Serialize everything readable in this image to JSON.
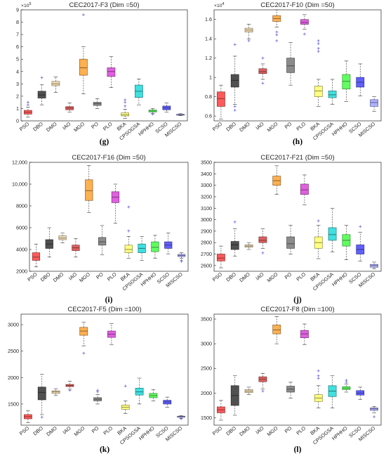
{
  "figure": {
    "labels": [
      "(g)",
      "(h)",
      "(i)",
      "(j)",
      "(k)",
      "(l)"
    ]
  },
  "chart_data": [
    {
      "type": "box",
      "title": "CEC2017-F3 (Dim =50)",
      "subplot_label": "(g)",
      "exponent": "5",
      "ylim": [
        0,
        9
      ],
      "yticks": [
        0,
        1,
        2,
        3,
        4,
        5,
        6,
        7,
        8,
        9
      ],
      "ytick_labels": [
        "0",
        "1",
        "2",
        "3",
        "4",
        "5",
        "6",
        "7",
        "8",
        "9"
      ],
      "categories": [
        "PSO",
        "DBO",
        "DMO",
        "IAO",
        "MGO",
        "PO",
        "PLO",
        "BKA",
        "CPSOGSA",
        "HPHHO",
        "SCSO",
        "MISCSO"
      ],
      "colors": [
        "#ff5a5a",
        "#505050",
        "#f3dcb4",
        "#e06060",
        "#ffb050",
        "#8c8c8c",
        "#e060e0",
        "#ffff80",
        "#40e0e0",
        "#60ff60",
        "#6060ff",
        "#b0b0ff"
      ],
      "boxes": [
        {
          "whislo": 0.3,
          "q1": 0.55,
          "med": 0.7,
          "q3": 0.85,
          "whishi": 1.1,
          "fliers": [
            1.3,
            1.5
          ]
        },
        {
          "whislo": 1.3,
          "q1": 1.85,
          "med": 2.1,
          "q3": 2.4,
          "whishi": 2.95,
          "fliers": [
            3.5
          ]
        },
        {
          "whislo": 2.3,
          "q1": 2.85,
          "med": 3.0,
          "q3": 3.2,
          "whishi": 3.55,
          "fliers": []
        },
        {
          "whislo": 0.7,
          "q1": 0.9,
          "med": 1.05,
          "q3": 1.15,
          "whishi": 1.45,
          "fliers": []
        },
        {
          "whislo": 2.2,
          "q1": 3.7,
          "med": 4.3,
          "q3": 5.0,
          "whishi": 6.0,
          "fliers": [
            8.6
          ]
        },
        {
          "whislo": 1.0,
          "q1": 1.25,
          "med": 1.4,
          "q3": 1.5,
          "whishi": 1.8,
          "fliers": []
        },
        {
          "whislo": 2.7,
          "q1": 3.6,
          "med": 4.0,
          "q3": 4.3,
          "whishi": 5.2,
          "fliers": []
        },
        {
          "whislo": 0.2,
          "q1": 0.4,
          "med": 0.5,
          "q3": 0.65,
          "whishi": 0.95,
          "fliers": [
            1.2,
            1.5,
            1.7
          ]
        },
        {
          "whislo": 1.3,
          "q1": 1.9,
          "med": 2.4,
          "q3": 2.9,
          "whishi": 3.4,
          "fliers": []
        },
        {
          "whislo": 0.6,
          "q1": 0.72,
          "med": 0.8,
          "q3": 0.88,
          "whishi": 1.0,
          "fliers": [
            0.55
          ]
        },
        {
          "whislo": 0.7,
          "q1": 0.9,
          "med": 1.05,
          "q3": 1.2,
          "whishi": 1.45,
          "fliers": []
        },
        {
          "whislo": 0.42,
          "q1": 0.46,
          "med": 0.5,
          "q3": 0.54,
          "whishi": 0.58,
          "fliers": []
        }
      ]
    },
    {
      "type": "box",
      "title": "CEC2017-F10 (Dim =50)",
      "subplot_label": "(h)",
      "exponent": "4",
      "ylim": [
        0.55,
        1.7
      ],
      "yticks": [
        0.6,
        0.8,
        1.0,
        1.2,
        1.4,
        1.6
      ],
      "ytick_labels": [
        "0.6",
        "0.8",
        "1",
        "1.2",
        "1.4",
        "1.6"
      ],
      "categories": [
        "PSO",
        "DBO",
        "DMO",
        "IAO",
        "MGO",
        "PO",
        "PLO",
        "BKA",
        "CPSOGSA",
        "HPHHO",
        "SCSO",
        "MISCSO"
      ],
      "colors": [
        "#ff5a5a",
        "#505050",
        "#f3dcb4",
        "#e06060",
        "#ffb050",
        "#8c8c8c",
        "#e060e0",
        "#ffff80",
        "#40e0e0",
        "#60ff60",
        "#6060ff",
        "#b0b0ff"
      ],
      "boxes": [
        {
          "whislo": 0.57,
          "q1": 0.7,
          "med": 0.78,
          "q3": 0.85,
          "whishi": 0.92,
          "fliers": []
        },
        {
          "whislo": 0.72,
          "q1": 0.9,
          "med": 0.97,
          "q3": 1.03,
          "whishi": 1.22,
          "fliers": [
            1.34,
            0.66,
            0.7
          ]
        },
        {
          "whislo": 1.4,
          "q1": 1.47,
          "med": 1.49,
          "q3": 1.51,
          "whishi": 1.55,
          "fliers": [
            1.38
          ]
        },
        {
          "whislo": 0.98,
          "q1": 1.04,
          "med": 1.06,
          "q3": 1.09,
          "whishi": 1.14,
          "fliers": [
            0.94,
            1.2
          ]
        },
        {
          "whislo": 1.52,
          "q1": 1.58,
          "med": 1.61,
          "q3": 1.64,
          "whishi": 1.7,
          "fliers": [
            1.38,
            1.44,
            1.47
          ]
        },
        {
          "whislo": 0.92,
          "q1": 1.05,
          "med": 1.12,
          "q3": 1.2,
          "whishi": 1.36,
          "fliers": []
        },
        {
          "whislo": 1.5,
          "q1": 1.55,
          "med": 1.57,
          "q3": 1.6,
          "whishi": 1.65,
          "fliers": [
            1.45
          ]
        },
        {
          "whislo": 0.7,
          "q1": 0.8,
          "med": 0.86,
          "q3": 0.91,
          "whishi": 0.98,
          "fliers": [
            1.27,
            1.3,
            1.35,
            1.38
          ]
        },
        {
          "whislo": 0.72,
          "q1": 0.79,
          "med": 0.82,
          "q3": 0.86,
          "whishi": 0.98,
          "fliers": []
        },
        {
          "whislo": 0.75,
          "q1": 0.88,
          "med": 0.96,
          "q3": 1.03,
          "whishi": 1.17,
          "fliers": []
        },
        {
          "whislo": 0.81,
          "q1": 0.9,
          "med": 0.95,
          "q3": 1.0,
          "whishi": 1.14,
          "fliers": []
        },
        {
          "whislo": 0.65,
          "q1": 0.7,
          "med": 0.74,
          "q3": 0.77,
          "whishi": 0.8,
          "fliers": []
        }
      ]
    },
    {
      "type": "box",
      "title": "CEC2017-F16 (Dim =50)",
      "subplot_label": "(i)",
      "exponent": "",
      "ylim": [
        2000,
        12000
      ],
      "yticks": [
        2000,
        4000,
        6000,
        8000,
        10000,
        12000
      ],
      "ytick_labels": [
        "2000",
        "4000",
        "6000",
        "8000",
        "10,000",
        "12,000"
      ],
      "categories": [
        "PSO",
        "DBO",
        "DMO",
        "IAO",
        "MGO",
        "PO",
        "PLO",
        "BKA",
        "CPSOGSA",
        "HPHHO",
        "SCSO",
        "MISCSO"
      ],
      "colors": [
        "#ff5a5a",
        "#505050",
        "#f3dcb4",
        "#e06060",
        "#ffb050",
        "#8c8c8c",
        "#e060e0",
        "#ffff80",
        "#40e0e0",
        "#60ff60",
        "#6060ff",
        "#b0b0ff"
      ],
      "boxes": [
        {
          "whislo": 2400,
          "q1": 3000,
          "med": 3300,
          "q3": 3700,
          "whishi": 4500,
          "fliers": []
        },
        {
          "whislo": 3300,
          "q1": 4100,
          "med": 4500,
          "q3": 4900,
          "whishi": 6000,
          "fliers": []
        },
        {
          "whislo": 4600,
          "q1": 4900,
          "med": 5050,
          "q3": 5250,
          "whishi": 5500,
          "fliers": []
        },
        {
          "whislo": 3300,
          "q1": 3900,
          "med": 4150,
          "q3": 4400,
          "whishi": 5000,
          "fliers": []
        },
        {
          "whislo": 7400,
          "q1": 8500,
          "med": 9400,
          "q3": 10400,
          "whishi": 11700,
          "fliers": []
        },
        {
          "whislo": 3500,
          "q1": 4400,
          "med": 4700,
          "q3": 5100,
          "whishi": 6200,
          "fliers": []
        },
        {
          "whislo": 6400,
          "q1": 8300,
          "med": 8800,
          "q3": 9300,
          "whishi": 10000,
          "fliers": []
        },
        {
          "whislo": 3200,
          "q1": 3700,
          "med": 4000,
          "q3": 4400,
          "whishi": 5200,
          "fliers": [
            5700,
            7900
          ]
        },
        {
          "whislo": 3000,
          "q1": 3700,
          "med": 4100,
          "q3": 4500,
          "whishi": 5200,
          "fliers": []
        },
        {
          "whislo": 3200,
          "q1": 3800,
          "med": 4200,
          "q3": 4700,
          "whishi": 5300,
          "fliers": []
        },
        {
          "whislo": 3600,
          "q1": 4100,
          "med": 4400,
          "q3": 4700,
          "whishi": 5500,
          "fliers": []
        },
        {
          "whislo": 3200,
          "q1": 3350,
          "med": 3450,
          "q3": 3550,
          "whishi": 3700,
          "fliers": [
            2900,
            3000
          ]
        }
      ]
    },
    {
      "type": "box",
      "title": "CEC2017-F21 (Dim =50)",
      "subplot_label": "(j)",
      "exponent": "",
      "ylim": [
        2550,
        3500
      ],
      "yticks": [
        2600,
        2700,
        2800,
        2900,
        3000,
        3100,
        3200,
        3300,
        3400,
        3500
      ],
      "ytick_labels": [
        "2600",
        "2700",
        "2800",
        "2900",
        "3000",
        "3100",
        "3200",
        "3300",
        "3400",
        "3500"
      ],
      "categories": [
        "PSO",
        "DBO",
        "DMO",
        "IAO",
        "MGO",
        "PO",
        "PLO",
        "BKA",
        "CPSOGSA",
        "HPHHO",
        "SCSO",
        "MISCSO"
      ],
      "colors": [
        "#ff5a5a",
        "#505050",
        "#f3dcb4",
        "#e06060",
        "#ffb050",
        "#8c8c8c",
        "#e060e0",
        "#ffff80",
        "#40e0e0",
        "#60ff60",
        "#6060ff",
        "#b0b0ff"
      ],
      "boxes": [
        {
          "whislo": 2580,
          "q1": 2640,
          "med": 2665,
          "q3": 2700,
          "whishi": 2770,
          "fliers": []
        },
        {
          "whislo": 2680,
          "q1": 2740,
          "med": 2780,
          "q3": 2810,
          "whishi": 2920,
          "fliers": [
            2980
          ]
        },
        {
          "whislo": 2740,
          "q1": 2760,
          "med": 2770,
          "q3": 2780,
          "whishi": 2800,
          "fliers": []
        },
        {
          "whislo": 2750,
          "q1": 2800,
          "med": 2820,
          "q3": 2850,
          "whishi": 2920,
          "fliers": [
            2710
          ]
        },
        {
          "whislo": 3220,
          "q1": 3300,
          "med": 3340,
          "q3": 3380,
          "whishi": 3470,
          "fliers": []
        },
        {
          "whislo": 2700,
          "q1": 2750,
          "med": 2790,
          "q3": 2850,
          "whishi": 2950,
          "fliers": []
        },
        {
          "whislo": 3130,
          "q1": 3220,
          "med": 3260,
          "q3": 3310,
          "whishi": 3390,
          "fliers": []
        },
        {
          "whislo": 2660,
          "q1": 2750,
          "med": 2800,
          "q3": 2850,
          "whishi": 2950,
          "fliers": [
            2990
          ]
        },
        {
          "whislo": 2720,
          "q1": 2820,
          "med": 2870,
          "q3": 2930,
          "whishi": 3100,
          "fliers": []
        },
        {
          "whislo": 2650,
          "q1": 2770,
          "med": 2820,
          "q3": 2870,
          "whishi": 2950,
          "fliers": []
        },
        {
          "whislo": 2640,
          "q1": 2700,
          "med": 2740,
          "q3": 2780,
          "whishi": 2890,
          "fliers": [
            2940
          ]
        },
        {
          "whislo": 2570,
          "q1": 2585,
          "med": 2600,
          "q3": 2610,
          "whishi": 2630,
          "fliers": []
        }
      ]
    },
    {
      "type": "box",
      "title": "CEC2017-F5 (Dim =100)",
      "subplot_label": "(k)",
      "exponent": "",
      "ylim": [
        1100,
        3200
      ],
      "yticks": [
        1500,
        2000,
        2500,
        3000
      ],
      "ytick_labels": [
        "1500",
        "2000",
        "2500",
        "3000"
      ],
      "categories": [
        "PSO",
        "DBO",
        "DMO",
        "IAO",
        "MGO",
        "PO",
        "PLO",
        "BKA",
        "CPSOGSA",
        "HPHHO",
        "SCSO",
        "MISCSO"
      ],
      "colors": [
        "#ff5a5a",
        "#505050",
        "#f3dcb4",
        "#e06060",
        "#ffb050",
        "#8c8c8c",
        "#e060e0",
        "#ffff80",
        "#40e0e0",
        "#60ff60",
        "#6060ff",
        "#b0b0ff"
      ],
      "boxes": [
        {
          "whislo": 1150,
          "q1": 1220,
          "med": 1260,
          "q3": 1300,
          "whishi": 1370,
          "fliers": []
        },
        {
          "whislo": 1300,
          "q1": 1580,
          "med": 1720,
          "q3": 1820,
          "whishi": 2060,
          "fliers": [
            1250
          ]
        },
        {
          "whislo": 1660,
          "q1": 1700,
          "med": 1730,
          "q3": 1750,
          "whishi": 1790,
          "fliers": []
        },
        {
          "whislo": 1780,
          "q1": 1830,
          "med": 1850,
          "q3": 1870,
          "whishi": 1930,
          "fliers": [
            1760
          ]
        },
        {
          "whislo": 2600,
          "q1": 2800,
          "med": 2880,
          "q3": 2950,
          "whishi": 3050,
          "fliers": [
            2460
          ]
        },
        {
          "whislo": 1500,
          "q1": 1560,
          "med": 1590,
          "q3": 1620,
          "whishi": 1680,
          "fliers": [
            1730,
            1760
          ]
        },
        {
          "whislo": 2620,
          "q1": 2760,
          "med": 2820,
          "q3": 2880,
          "whishi": 3020,
          "fliers": []
        },
        {
          "whislo": 1320,
          "q1": 1400,
          "med": 1440,
          "q3": 1480,
          "whishi": 1560,
          "fliers": [
            1840
          ]
        },
        {
          "whislo": 1500,
          "q1": 1670,
          "med": 1730,
          "q3": 1800,
          "whishi": 1990,
          "fliers": []
        },
        {
          "whislo": 1560,
          "q1": 1620,
          "med": 1660,
          "q3": 1700,
          "whishi": 1770,
          "fliers": []
        },
        {
          "whislo": 1440,
          "q1": 1500,
          "med": 1540,
          "q3": 1570,
          "whishi": 1630,
          "fliers": []
        },
        {
          "whislo": 1230,
          "q1": 1250,
          "med": 1260,
          "q3": 1270,
          "whishi": 1280,
          "fliers": [
            1220
          ]
        }
      ]
    },
    {
      "type": "box",
      "title": "CEC2017-F8 (Dim =100)",
      "subplot_label": "(l)",
      "exponent": "",
      "ylim": [
        1350,
        3600
      ],
      "yticks": [
        1500,
        2000,
        2500,
        3000,
        3500
      ],
      "ytick_labels": [
        "1500",
        "2000",
        "2500",
        "3000",
        "3500"
      ],
      "categories": [
        "PSO",
        "DBO",
        "DMO",
        "IAO",
        "MGO",
        "PO",
        "PLO",
        "BKA",
        "CPSOGSA",
        "HPHHO",
        "SCSO",
        "MISCSO"
      ],
      "colors": [
        "#ff5a5a",
        "#505050",
        "#f3dcb4",
        "#e06060",
        "#ffb050",
        "#8c8c8c",
        "#e060e0",
        "#ffff80",
        "#40e0e0",
        "#60ff60",
        "#6060ff",
        "#b0b0ff"
      ],
      "boxes": [
        {
          "whislo": 1450,
          "q1": 1600,
          "med": 1660,
          "q3": 1720,
          "whishi": 1850,
          "fliers": []
        },
        {
          "whislo": 1550,
          "q1": 1750,
          "med": 1950,
          "q3": 2150,
          "whishi": 2350,
          "fliers": []
        },
        {
          "whislo": 1970,
          "q1": 2010,
          "med": 2040,
          "q3": 2070,
          "whishi": 2120,
          "fliers": []
        },
        {
          "whislo": 2080,
          "q1": 2230,
          "med": 2280,
          "q3": 2330,
          "whishi": 2400,
          "fliers": [
            2040
          ]
        },
        {
          "whislo": 3000,
          "q1": 3200,
          "med": 3280,
          "q3": 3380,
          "whishi": 3550,
          "fliers": []
        },
        {
          "whislo": 1900,
          "q1": 2020,
          "med": 2080,
          "q3": 2140,
          "whishi": 2220,
          "fliers": []
        },
        {
          "whislo": 2980,
          "q1": 3120,
          "med": 3200,
          "q3": 3270,
          "whishi": 3400,
          "fliers": []
        },
        {
          "whislo": 1700,
          "q1": 1830,
          "med": 1900,
          "q3": 1970,
          "whishi": 2150,
          "fliers": [
            2300,
            2350,
            2450
          ]
        },
        {
          "whislo": 1700,
          "q1": 1930,
          "med": 2040,
          "q3": 2150,
          "whishi": 2350,
          "fliers": []
        },
        {
          "whislo": 2020,
          "q1": 2070,
          "med": 2100,
          "q3": 2130,
          "whishi": 2180,
          "fliers": [
            2220,
            2260
          ]
        },
        {
          "whislo": 1870,
          "q1": 1960,
          "med": 2000,
          "q3": 2050,
          "whishi": 2120,
          "fliers": []
        },
        {
          "whislo": 1600,
          "q1": 1650,
          "med": 1680,
          "q3": 1700,
          "whishi": 1730,
          "fliers": [
            1520
          ]
        }
      ]
    }
  ]
}
